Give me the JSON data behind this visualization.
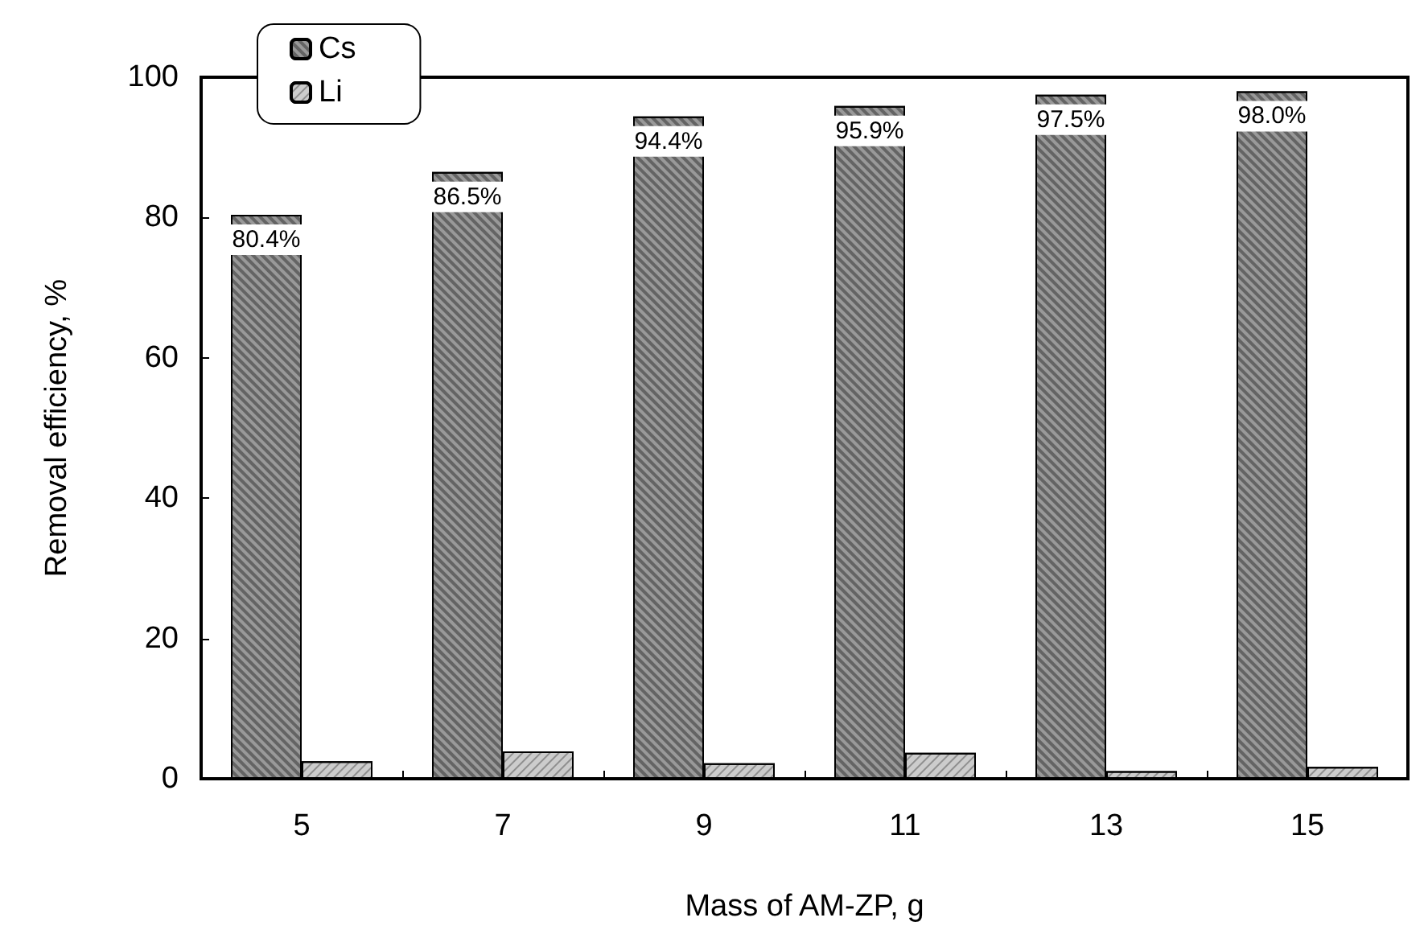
{
  "chart_data": {
    "type": "bar",
    "xlabel": "Mass of AM-ZP, g",
    "ylabel": "Removal efficiency, %",
    "categories": [
      "5",
      "7",
      "9",
      "11",
      "13",
      "15"
    ],
    "series": [
      {
        "name": "Cs",
        "color": "#999999",
        "values": [
          80.4,
          86.5,
          94.4,
          95.9,
          97.5,
          98.0
        ],
        "value_labels": [
          "80.4%",
          "86.5%",
          "94.4%",
          "95.9%",
          "97.5%",
          "98.0%"
        ]
      },
      {
        "name": "Li",
        "color": "#cccccc",
        "values": [
          2.5,
          3.9,
          2.2,
          3.7,
          1.1,
          1.7
        ]
      }
    ],
    "ylim": [
      0,
      100
    ],
    "yticks": [
      0,
      20,
      40,
      60,
      80,
      100
    ],
    "grid": false,
    "legend": "top left"
  }
}
